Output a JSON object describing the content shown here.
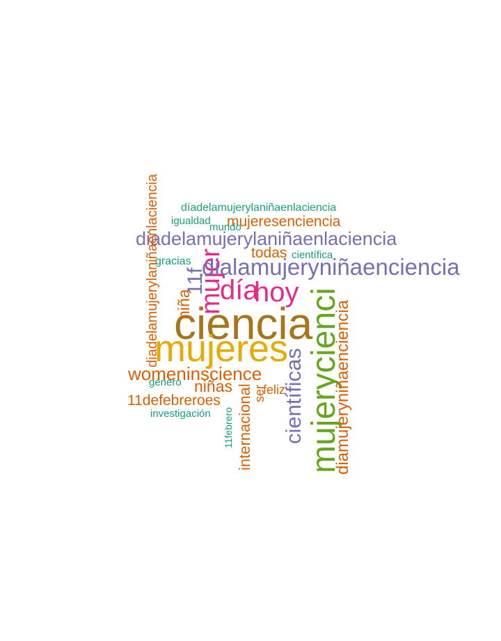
{
  "palette": {
    "teal": "#1b9e77",
    "orange": "#d95f02",
    "purple": "#7570b3",
    "magenta": "#e7298a",
    "green": "#66a61e",
    "gold": "#e6ab02",
    "brown": "#a6761d"
  },
  "words": [
    {
      "id": "ciencia",
      "text": "ciencia",
      "color": "brown",
      "vertical": false
    },
    {
      "id": "mujeres",
      "text": "mujeres",
      "color": "gold",
      "vertical": false
    },
    {
      "id": "mujerycienci",
      "text": "mujerycienci",
      "color": "green",
      "vertical": true
    },
    {
      "id": "hoy",
      "text": "hoy",
      "color": "magenta",
      "vertical": false
    },
    {
      "id": "dia",
      "text": "día",
      "color": "magenta",
      "vertical": false
    },
    {
      "id": "mujer",
      "text": "mujer",
      "color": "magenta",
      "vertical": true
    },
    {
      "id": "diadelamujerylaninaenlaciencia-h",
      "text": "diadelamujerylaniñaenlaciencia",
      "color": "purple",
      "vertical": false
    },
    {
      "id": "dialamujerynina",
      "text": "dialamujeryniñaenciencia",
      "color": "purple",
      "vertical": false
    },
    {
      "id": "cientificas",
      "text": "científicas",
      "color": "purple",
      "vertical": true
    },
    {
      "id": "11f",
      "text": "11f",
      "color": "purple",
      "vertical": true
    },
    {
      "id": "diadelamujerylaninaenlaciencia-v",
      "text": "diadelamujerylaniñaenlaciencia",
      "color": "orange",
      "vertical": true
    },
    {
      "id": "diamujeryninaenciencia",
      "text": "diamujeryniñaenciencia",
      "color": "orange",
      "vertical": true
    },
    {
      "id": "womeninscience",
      "text": "womeninscience",
      "color": "orange",
      "vertical": false
    },
    {
      "id": "mujeresenciencia",
      "text": "mujeresenciencia",
      "color": "orange",
      "vertical": false
    },
    {
      "id": "nina",
      "text": "niña",
      "color": "orange",
      "vertical": true
    },
    {
      "id": "ninas",
      "text": "niñas",
      "color": "orange",
      "vertical": false
    },
    {
      "id": "todas",
      "text": "todas",
      "color": "orange",
      "vertical": false
    },
    {
      "id": "11defebreroes",
      "text": "11defebreroes",
      "color": "orange",
      "vertical": false
    },
    {
      "id": "internacional",
      "text": "internacional",
      "color": "orange",
      "vertical": true
    },
    {
      "id": "ser",
      "text": "ser",
      "color": "orange",
      "vertical": true
    },
    {
      "id": "feliz",
      "text": "feliz",
      "color": "orange",
      "vertical": false
    },
    {
      "id": "diadelamujer-top",
      "text": "díadelamujerylaniñaenlaciencia",
      "color": "teal",
      "vertical": false
    },
    {
      "id": "igualdad",
      "text": "igualdad",
      "color": "teal",
      "vertical": false
    },
    {
      "id": "mundo",
      "text": "mundo",
      "color": "teal",
      "vertical": false
    },
    {
      "id": "gracias",
      "text": "gracias",
      "color": "teal",
      "vertical": false
    },
    {
      "id": "cientifica",
      "text": "científica",
      "color": "teal",
      "vertical": false
    },
    {
      "id": "genero",
      "text": "género",
      "color": "teal",
      "vertical": false
    },
    {
      "id": "investigacion",
      "text": "investigación",
      "color": "teal",
      "vertical": false
    },
    {
      "id": "11febrero",
      "text": "11febrero",
      "color": "teal",
      "vertical": true
    }
  ]
}
